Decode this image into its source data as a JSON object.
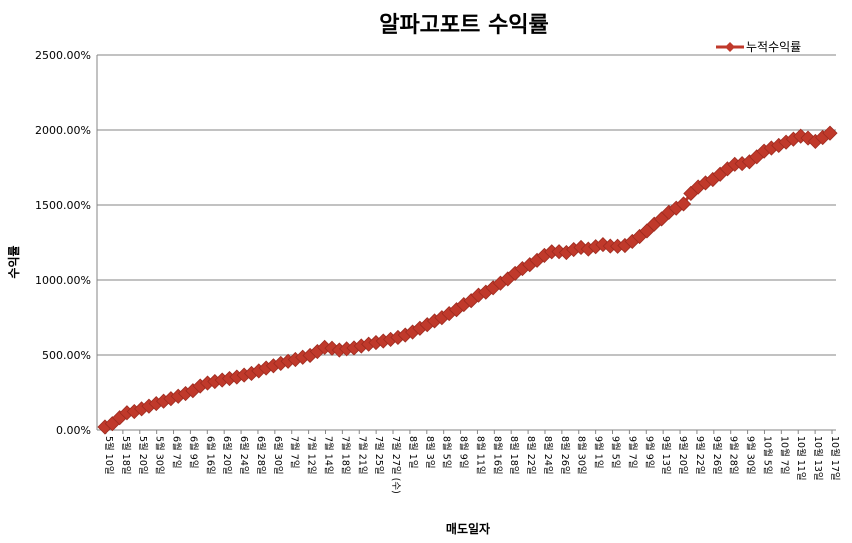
{
  "chart_data": {
    "type": "line",
    "title": "알파고포트 수익률",
    "xlabel": "매도일자",
    "ylabel": "수익률",
    "ylim": [
      0,
      2500
    ],
    "yticks": [
      "0.00%",
      "500.00%",
      "1000.00%",
      "1500.00%",
      "2000.00%",
      "2500.00%"
    ],
    "grid": true,
    "legend_position": "top-right",
    "series_color": "#C0392B",
    "marker": "diamond",
    "x_tick_labels": [
      "5월 10일",
      "5월 18일",
      "5월 20일",
      "5월 30일",
      "6월 7일",
      "6월 9일",
      "6월 16일",
      "6월 20일",
      "6월 24일",
      "6월 28일",
      "6월 30일",
      "7월 7일",
      "7월 12일",
      "7월 14일",
      "7월 18일",
      "7월 21일",
      "7월 25일",
      "7월 27일 (수)",
      "8월 1일",
      "8월 3일",
      "8월 5일",
      "8월 9일",
      "8월 11일",
      "8월 16일",
      "8월 18일",
      "8월 22일",
      "8월 24일",
      "8월 26일",
      "8월 30일",
      "9월 1일",
      "9월 5일",
      "9월 7일",
      "9월 9일",
      "9월 13일",
      "9월 20일",
      "9월 22일",
      "9월 26일",
      "9월 28일",
      "9월 30일",
      "10월 5일",
      "10월 7일",
      "10월 11일",
      "10월 13일",
      "10월 17일"
    ],
    "series": [
      {
        "name": "누적수익률",
        "values": [
          20,
          42,
          82,
          115,
          123,
          141,
          159,
          176,
          192,
          209,
          225,
          243,
          262,
          293,
          313,
          323,
          333,
          343,
          353,
          366,
          377,
          394,
          413,
          428,
          444,
          458,
          470,
          485,
          497,
          523,
          551,
          545,
          533,
          541,
          547,
          560,
          572,
          583,
          593,
          604,
          617,
          633,
          653,
          678,
          702,
          727,
          749,
          776,
          802,
          836,
          862,
          899,
          919,
          948,
          979,
          1007,
          1044,
          1076,
          1102,
          1131,
          1164,
          1188,
          1189,
          1183,
          1203,
          1217,
          1206,
          1222,
          1236,
          1226,
          1225,
          1230,
          1257,
          1290,
          1327,
          1372,
          1407,
          1451,
          1479,
          1507,
          1577,
          1620,
          1647,
          1670,
          1705,
          1741,
          1771,
          1776,
          1788,
          1821,
          1859,
          1880,
          1897,
          1919,
          1939,
          1959,
          1946,
          1924,
          1950,
          1979
        ]
      }
    ]
  }
}
